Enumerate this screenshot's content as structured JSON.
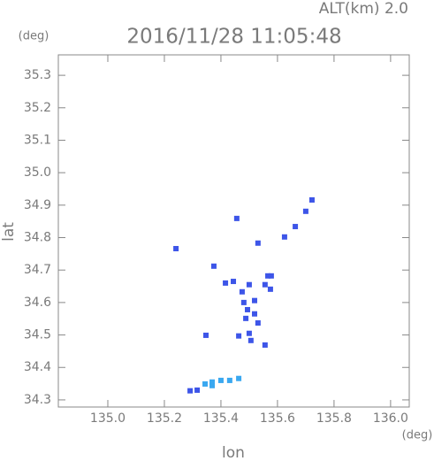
{
  "chart_data": {
    "type": "scatter",
    "title": "2016/11/28 11:05:48",
    "annotation": "ALT(km)  2.0",
    "y_unit": "(deg)",
    "x_unit": "(deg)",
    "x_label": "lon",
    "y_label": "lat",
    "xlim": [
      134.825,
      136.066
    ],
    "ylim": [
      34.278,
      35.363
    ],
    "xticks": [
      {
        "value": 135,
        "label": "135.0"
      },
      135.2,
      135.4,
      135.6,
      135.8,
      {
        "value": 136,
        "label": "136.0"
      }
    ],
    "yticks": [
      34.3,
      34.4,
      34.5,
      34.6,
      34.7,
      34.8,
      34.9,
      {
        "value": 35,
        "label": "35.0"
      },
      35.1,
      35.2,
      35.3
    ],
    "series": [
      {
        "color": "#3d55e8",
        "x": [
          135.722,
          135.7,
          135.241,
          135.531,
          135.456,
          135.663,
          135.625,
          135.375,
          135.416,
          135.5,
          135.575,
          135.566,
          135.556,
          135.481,
          135.494,
          135.519,
          135.488,
          135.463,
          135.5,
          135.506,
          135.556,
          135.347,
          135.444,
          135.475,
          135.578,
          135.519,
          135.531,
          135.291,
          135.316
        ],
        "y": [
          34.916,
          34.881,
          34.766,
          34.783,
          34.859,
          34.834,
          34.802,
          34.712,
          34.66,
          34.655,
          34.641,
          34.682,
          34.655,
          34.6,
          34.578,
          34.565,
          34.551,
          34.497,
          34.505,
          34.483,
          34.469,
          34.499,
          34.665,
          34.633,
          34.682,
          34.606,
          34.537,
          34.328,
          34.33
        ]
      },
      {
        "color": "#3aa8f0",
        "x": [
          135.344,
          135.369,
          135.4,
          135.431,
          135.463,
          135.369
        ],
        "y": [
          34.349,
          34.355,
          34.36,
          34.36,
          34.366,
          34.344
        ]
      }
    ]
  }
}
